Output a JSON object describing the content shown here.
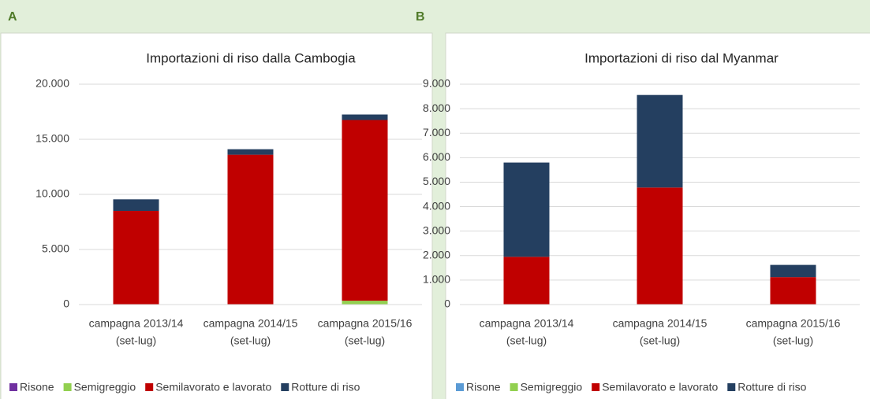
{
  "chart_data": [
    {
      "type": "bar",
      "stacked": true,
      "panel": "A",
      "title": "Importazioni di riso dalla Cambogia",
      "categories": [
        [
          "campagna 2013/14",
          "(set-lug)"
        ],
        [
          "campagna 2014/15",
          "(set-lug)"
        ],
        [
          "campagna 2015/16",
          "(set-lug)"
        ]
      ],
      "series": [
        {
          "name": "Risone",
          "color": "#7030a0",
          "values": [
            0,
            0,
            0
          ]
        },
        {
          "name": "Semigreggio",
          "color": "#92d050",
          "values": [
            0,
            0,
            350
          ]
        },
        {
          "name": "Semilavorato e lavorato",
          "color": "#c00000",
          "values": [
            8500,
            13600,
            16400
          ]
        },
        {
          "name": "Rotture di riso",
          "color": "#243f60",
          "values": [
            1050,
            500,
            500
          ]
        }
      ],
      "ylim": [
        0,
        20000
      ],
      "yticks": [
        0,
        {
          "value": 5000,
          "label": "5.000"
        },
        {
          "value": 10000,
          "label": "10.000"
        },
        {
          "value": 15000,
          "label": "15.000"
        },
        {
          "value": 20000,
          "label": "20.000"
        }
      ],
      "grid": true
    },
    {
      "type": "bar",
      "stacked": true,
      "panel": "B",
      "title": "Importazioni di riso dal Myanmar",
      "categories": [
        [
          "campagna 2013/14",
          "(set-lug)"
        ],
        [
          "campagna 2014/15",
          "(set-lug)"
        ],
        [
          "campagna 2015/16",
          "(set-lug)"
        ]
      ],
      "series": [
        {
          "name": "Risone",
          "color": "#5b9bd5",
          "values": [
            0,
            0,
            0
          ]
        },
        {
          "name": "Semigreggio",
          "color": "#92d050",
          "values": [
            0,
            0,
            0
          ]
        },
        {
          "name": "Semilavorato e lavorato",
          "color": "#c00000",
          "values": [
            1950,
            4780,
            1120
          ]
        },
        {
          "name": "Rotture di riso",
          "color": "#243f60",
          "values": [
            3850,
            3780,
            500
          ]
        }
      ],
      "ylim": [
        0,
        9000
      ],
      "yticks": [
        0,
        {
          "value": 1000,
          "label": "1.000"
        },
        {
          "value": 2000,
          "label": "2.000"
        },
        {
          "value": 3000,
          "label": "3.000"
        },
        {
          "value": 4000,
          "label": "4.000"
        },
        {
          "value": 5000,
          "label": "5.000"
        },
        {
          "value": 6000,
          "label": "6.000"
        },
        {
          "value": 7000,
          "label": "7.000"
        },
        {
          "value": 8000,
          "label": "8.000"
        },
        {
          "value": 9000,
          "label": "9.000"
        }
      ],
      "grid": true
    }
  ]
}
